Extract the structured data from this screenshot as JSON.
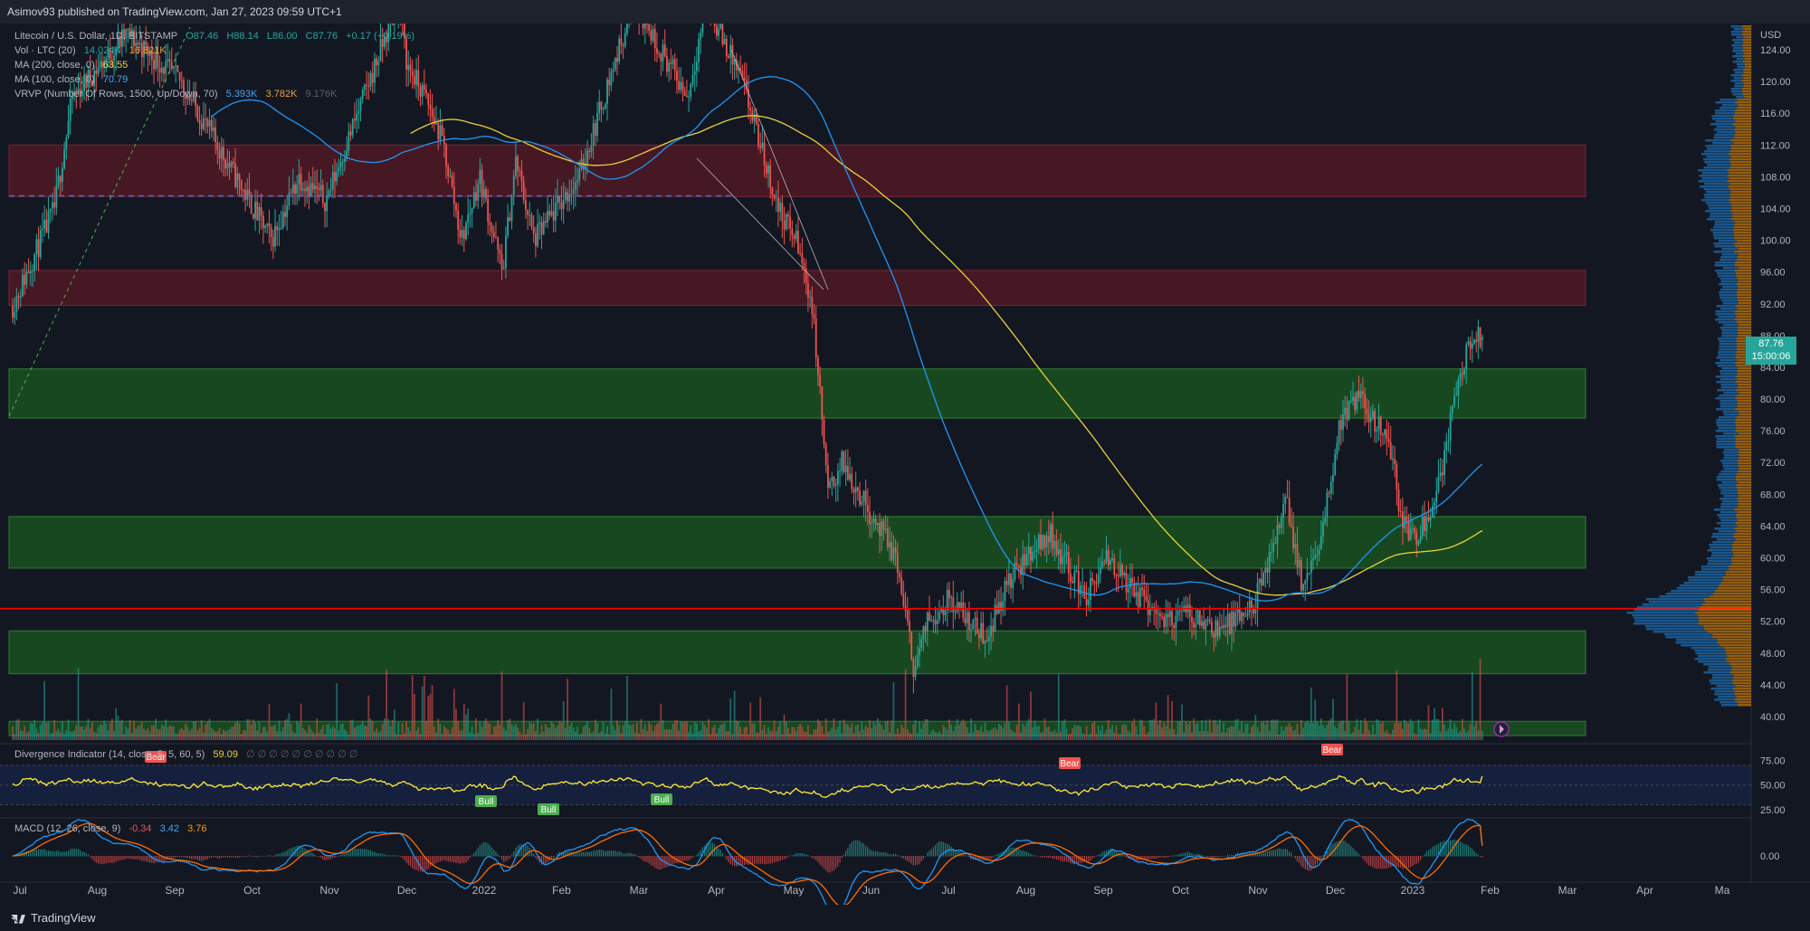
{
  "header": {
    "published_text": "Asimov93 published on TradingView.com, Jan 27, 2023 09:59 UTC+1"
  },
  "legend": {
    "symbol": "Litecoin / U.S. Dollar, 1D, BITSTAMP",
    "ohlc": {
      "o": "O87.46",
      "h": "H88.14",
      "l": "L86.00",
      "c": "C87.76",
      "chg": "+0.17 (+0.19%)"
    },
    "volume": {
      "label": "Vol · LTC (20)",
      "value1": "14.024K",
      "value2": "16.821K"
    },
    "ma200": {
      "label": "MA (200, close, 0)",
      "value": "63.55"
    },
    "ma100": {
      "label": "MA (100, close, 0)",
      "value": "70.79"
    },
    "vrvp": {
      "label": "VRVP (Number Of Rows, 1500, Up/Down, 70)",
      "up": "5.393K",
      "down": "3.782K",
      "total": "9.176K"
    },
    "divergence": {
      "label": "Divergence Indicator (14, close, 5, 5, 60, 5)",
      "value": "59.09",
      "extras": "∅ ∅ ∅ ∅ ∅ ∅ ∅ ∅ ∅ ∅"
    },
    "macd": {
      "label": "MACD (12, 26, close, 9)",
      "hist": "-0.34",
      "macd": "3.42",
      "signal": "3.76"
    }
  },
  "price_tag": {
    "price": "87.76",
    "countdown": "15:00:06"
  },
  "footer": {
    "brand": "TradingView"
  },
  "colors": {
    "background": "#131722",
    "up": "#26a69a",
    "down": "#ef5350",
    "ma100": "#2196f3",
    "ma200": "#e8d13b",
    "rsi_line": "#ffeb3b",
    "macd_line": "#2196f3",
    "signal_line": "#ff6d00",
    "supply_zone": "#5c1a24",
    "demand_zone": "#1b5e20",
    "support_line": "#ff0000"
  },
  "chart_data": [
    {
      "type": "candlestick",
      "title": "",
      "x_ticks": [
        "Jul",
        "Aug",
        "Sep",
        "Oct",
        "Nov",
        "Dec",
        "2022",
        "Feb",
        "Mar",
        "Apr",
        "May",
        "Jun",
        "Jul",
        "Aug",
        "Sep",
        "Oct",
        "Nov",
        "Dec",
        "2023",
        "Feb",
        "Mar",
        "Apr",
        "Ma"
      ],
      "y_axis": {
        "unit": "USD",
        "ticks": [
          124.0,
          120.0,
          116.0,
          112.0,
          108.0,
          104.0,
          100.0,
          96.0,
          92.0,
          88.0,
          84.0,
          80.0,
          76.0,
          72.0,
          68.0,
          64.0,
          60.0,
          56.0,
          52.0,
          48.0,
          44.0,
          40.0
        ],
        "range": [
          38,
          128
        ]
      },
      "current_price": 87.76,
      "zones": [
        {
          "kind": "supply",
          "low": 105.5,
          "high": 112.0
        },
        {
          "kind": "supply",
          "low": 91.8,
          "high": 96.2
        },
        {
          "kind": "demand",
          "low": 77.6,
          "high": 83.8
        },
        {
          "kind": "demand",
          "low": 58.7,
          "high": 65.2
        },
        {
          "kind": "demand",
          "low": 45.4,
          "high": 50.8
        },
        {
          "kind": "demand",
          "low": 37.6,
          "high": 39.4
        }
      ],
      "horizontal_lines": [
        {
          "kind": "support",
          "price": 53.6
        },
        {
          "kind": "level",
          "price": 105.6
        }
      ],
      "series": [
        {
          "name": "MA (200, close, 0)",
          "last_value": 63.55
        },
        {
          "name": "MA (100, close, 0)",
          "last_value": 70.79
        }
      ]
    },
    {
      "type": "line",
      "title": "Divergence Indicator (14, close, 5, 5, 60, 5)",
      "y_ticks": [
        75.0,
        50.0,
        25.0
      ],
      "last_value": 59.09,
      "labels": [
        "Bear",
        "Bull",
        "Bull",
        "Bull",
        "Bear",
        "Bear"
      ]
    },
    {
      "type": "line",
      "title": "MACD (12, 26, close, 9)",
      "y_ticks": [
        0.0
      ],
      "series": [
        {
          "name": "MACD",
          "last_value": 3.42
        },
        {
          "name": "Signal",
          "last_value": 3.76
        },
        {
          "name": "Histogram",
          "last_value": -0.34
        }
      ]
    }
  ]
}
